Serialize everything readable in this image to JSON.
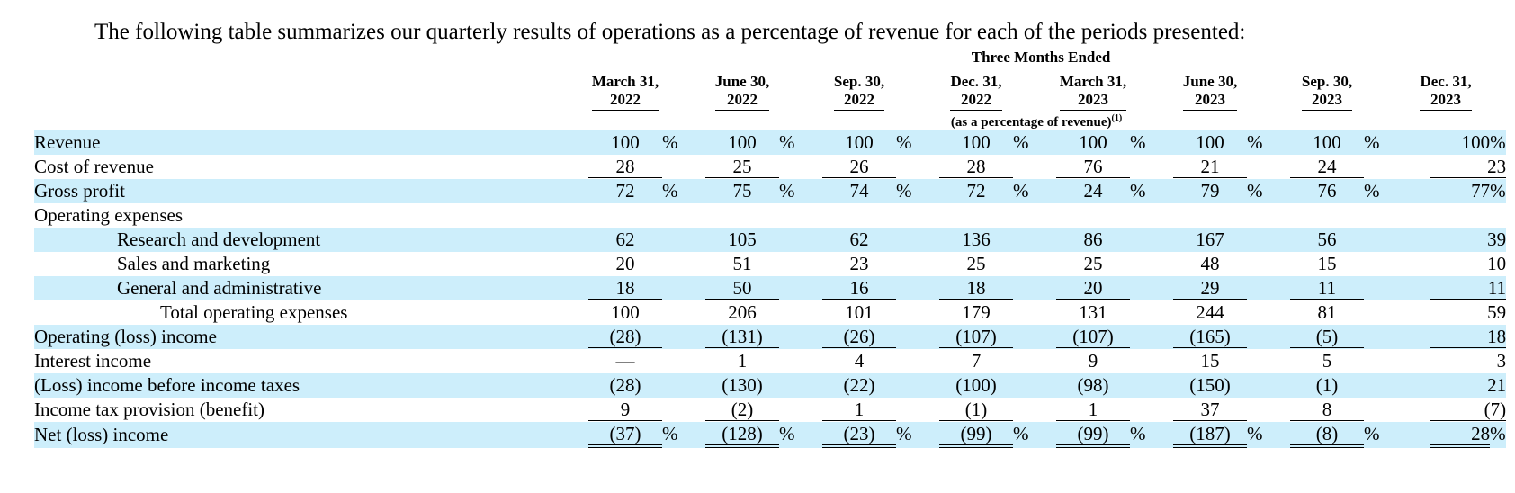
{
  "intro_text": "The following table summarizes our quarterly results of operations as a percentage of revenue for each of the periods presented:",
  "header": {
    "super_label": "Three Months Ended",
    "sub_label": "(as a percentage of revenue)",
    "sub_label_footnote": "(1)",
    "columns": [
      {
        "line1": "March 31,",
        "line2": "2022"
      },
      {
        "line1": "June 30,",
        "line2": "2022"
      },
      {
        "line1": "Sep. 30,",
        "line2": "2022"
      },
      {
        "line1": "Dec. 31,",
        "line2": "2022"
      },
      {
        "line1": "March 31,",
        "line2": "2023"
      },
      {
        "line1": "June 30,",
        "line2": "2023"
      },
      {
        "line1": "Sep. 30,",
        "line2": "2023"
      },
      {
        "line1": "Dec. 31,",
        "line2": "2023"
      }
    ]
  },
  "rows": [
    {
      "label": "Revenue",
      "values": [
        "100",
        "100",
        "100",
        "100",
        "100",
        "100",
        "100",
        "100"
      ],
      "suffix": "%"
    },
    {
      "label": "Cost of revenue",
      "values": [
        "28",
        "25",
        "26",
        "28",
        "76",
        "21",
        "24",
        "23"
      ],
      "suffix": ""
    },
    {
      "label": "Gross profit",
      "values": [
        "72",
        "75",
        "74",
        "72",
        "24",
        "79",
        "76",
        "77"
      ],
      "suffix": "%"
    },
    {
      "label": "Operating expenses",
      "values": [],
      "suffix": ""
    },
    {
      "label": "Research and development",
      "values": [
        "62",
        "105",
        "62",
        "136",
        "86",
        "167",
        "56",
        "39"
      ],
      "suffix": ""
    },
    {
      "label": "Sales and marketing",
      "values": [
        "20",
        "51",
        "23",
        "25",
        "25",
        "48",
        "15",
        "10"
      ],
      "suffix": ""
    },
    {
      "label": "General and administrative",
      "values": [
        "18",
        "50",
        "16",
        "18",
        "20",
        "29",
        "11",
        "11"
      ],
      "suffix": ""
    },
    {
      "label": "Total operating expenses",
      "values": [
        "100",
        "206",
        "101",
        "179",
        "131",
        "244",
        "81",
        "59"
      ],
      "suffix": ""
    },
    {
      "label": "Operating (loss) income",
      "values": [
        "(28)",
        "(131)",
        "(26)",
        "(107)",
        "(107)",
        "(165)",
        "(5)",
        "18"
      ],
      "suffix": ""
    },
    {
      "label": "Interest income",
      "values": [
        "—",
        "1",
        "4",
        "7",
        "9",
        "15",
        "5",
        "3"
      ],
      "suffix": ""
    },
    {
      "label": "(Loss) income before income taxes",
      "values": [
        "(28)",
        "(130)",
        "(22)",
        "(100)",
        "(98)",
        "(150)",
        "(1)",
        "21"
      ],
      "suffix": ""
    },
    {
      "label": "Income tax provision (benefit)",
      "values": [
        "9",
        "(2)",
        "1",
        "(1)",
        "1",
        "37",
        "8",
        "(7)"
      ],
      "suffix": ""
    },
    {
      "label": "Net (loss) income",
      "values": [
        "(37)",
        "(128)",
        "(23)",
        "(99)",
        "(99)",
        "(187)",
        "(8)",
        "28"
      ],
      "suffix": "%"
    }
  ]
}
